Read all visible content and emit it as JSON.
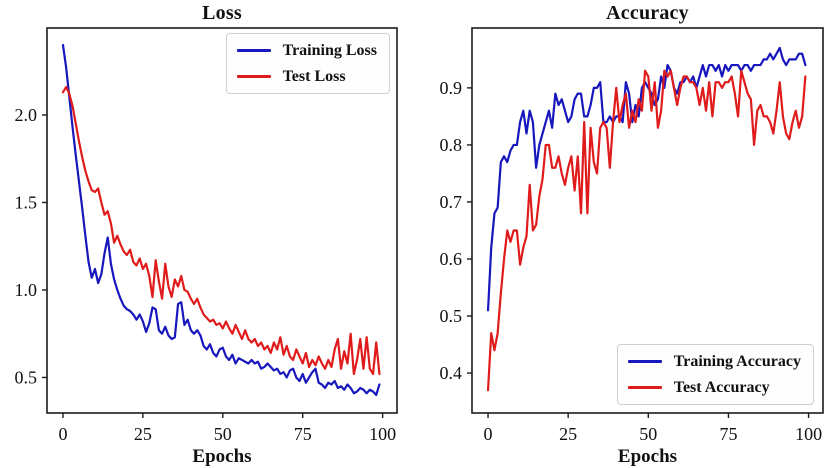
{
  "figure": {
    "background": "#ffffff"
  },
  "chart_data": [
    {
      "type": "line",
      "title": "Loss",
      "xlabel": "Epochs",
      "x_is_index": true,
      "xlim": [
        -5,
        104.5
      ],
      "ylim": [
        0.297,
        2.497
      ],
      "x_ticks": [
        0,
        25,
        50,
        75,
        100
      ],
      "x_tick_labels": [
        "0",
        "25",
        "50",
        "75",
        "100"
      ],
      "y_ticks": [
        0.5,
        1.0,
        1.5,
        2.0
      ],
      "y_tick_labels": [
        "0.5",
        "1.0",
        "1.5",
        "2.0"
      ],
      "grid": false,
      "legend_position": "upper-right",
      "series": [
        {
          "name": "Training Loss",
          "color": "#1717bd",
          "values": [
            2.4,
            2.27,
            2.1,
            1.93,
            1.77,
            1.62,
            1.47,
            1.31,
            1.16,
            1.07,
            1.12,
            1.04,
            1.09,
            1.21,
            1.3,
            1.15,
            1.06,
            1.0,
            0.95,
            0.91,
            0.89,
            0.88,
            0.86,
            0.83,
            0.86,
            0.82,
            0.76,
            0.81,
            0.9,
            0.89,
            0.77,
            0.75,
            0.79,
            0.74,
            0.72,
            0.73,
            0.92,
            0.93,
            0.8,
            0.83,
            0.77,
            0.75,
            0.77,
            0.74,
            0.68,
            0.66,
            0.69,
            0.64,
            0.62,
            0.66,
            0.67,
            0.62,
            0.6,
            0.63,
            0.58,
            0.61,
            0.6,
            0.59,
            0.58,
            0.6,
            0.58,
            0.59,
            0.55,
            0.56,
            0.58,
            0.56,
            0.54,
            0.55,
            0.52,
            0.53,
            0.5,
            0.54,
            0.55,
            0.5,
            0.48,
            0.52,
            0.47,
            0.5,
            0.53,
            0.55,
            0.47,
            0.46,
            0.44,
            0.47,
            0.46,
            0.48,
            0.44,
            0.45,
            0.43,
            0.46,
            0.44,
            0.41,
            0.42,
            0.44,
            0.43,
            0.41,
            0.43,
            0.42,
            0.4,
            0.46
          ]
        },
        {
          "name": "Test Loss",
          "color": "#e01b1b",
          "values": [
            2.13,
            2.16,
            2.12,
            2.05,
            1.95,
            1.85,
            1.76,
            1.68,
            1.62,
            1.57,
            1.56,
            1.58,
            1.5,
            1.43,
            1.45,
            1.38,
            1.27,
            1.31,
            1.26,
            1.22,
            1.2,
            1.23,
            1.16,
            1.14,
            1.18,
            1.12,
            1.15,
            1.08,
            0.96,
            1.17,
            1.05,
            0.95,
            1.15,
            1.02,
            0.96,
            1.06,
            1.02,
            1.08,
            1.0,
            0.99,
            0.95,
            0.92,
            0.95,
            0.9,
            0.86,
            0.84,
            0.82,
            0.83,
            0.8,
            0.81,
            0.78,
            0.82,
            0.78,
            0.75,
            0.8,
            0.76,
            0.72,
            0.77,
            0.72,
            0.7,
            0.72,
            0.68,
            0.7,
            0.66,
            0.68,
            0.64,
            0.7,
            0.66,
            0.73,
            0.63,
            0.68,
            0.62,
            0.6,
            0.66,
            0.62,
            0.58,
            0.64,
            0.56,
            0.6,
            0.57,
            0.62,
            0.58,
            0.55,
            0.6,
            0.56,
            0.66,
            0.72,
            0.55,
            0.65,
            0.58,
            0.75,
            0.52,
            0.6,
            0.72,
            0.55,
            0.73,
            0.55,
            0.52,
            0.7,
            0.52
          ]
        }
      ]
    },
    {
      "type": "line",
      "title": "Accuracy",
      "xlabel": "Epochs",
      "x_is_index": true,
      "xlim": [
        -5,
        104.5
      ],
      "ylim": [
        0.33,
        1.005
      ],
      "x_ticks": [
        0,
        25,
        50,
        75,
        100
      ],
      "x_tick_labels": [
        "0",
        "25",
        "50",
        "75",
        "100"
      ],
      "y_ticks": [
        0.4,
        0.5,
        0.6,
        0.7,
        0.8,
        0.9
      ],
      "y_tick_labels": [
        "0.4",
        "0.5",
        "0.6",
        "0.7",
        "0.8",
        "0.9"
      ],
      "grid": false,
      "legend_position": "lower-right",
      "series": [
        {
          "name": "Training Accuracy",
          "color": "#1717bd",
          "values": [
            0.51,
            0.62,
            0.68,
            0.69,
            0.77,
            0.78,
            0.77,
            0.79,
            0.8,
            0.8,
            0.84,
            0.86,
            0.82,
            0.86,
            0.84,
            0.76,
            0.8,
            0.82,
            0.84,
            0.86,
            0.83,
            0.89,
            0.87,
            0.88,
            0.86,
            0.84,
            0.85,
            0.88,
            0.89,
            0.89,
            0.85,
            0.85,
            0.87,
            0.9,
            0.9,
            0.91,
            0.84,
            0.84,
            0.85,
            0.84,
            0.85,
            0.85,
            0.84,
            0.91,
            0.89,
            0.84,
            0.87,
            0.85,
            0.9,
            0.91,
            0.9,
            0.89,
            0.87,
            0.88,
            0.92,
            0.9,
            0.94,
            0.93,
            0.9,
            0.89,
            0.91,
            0.91,
            0.92,
            0.91,
            0.92,
            0.9,
            0.92,
            0.94,
            0.92,
            0.94,
            0.94,
            0.93,
            0.94,
            0.92,
            0.94,
            0.93,
            0.94,
            0.94,
            0.94,
            0.93,
            0.94,
            0.94,
            0.93,
            0.94,
            0.94,
            0.94,
            0.95,
            0.95,
            0.96,
            0.95,
            0.96,
            0.97,
            0.95,
            0.94,
            0.95,
            0.95,
            0.95,
            0.96,
            0.96,
            0.94
          ]
        },
        {
          "name": "Test Accuracy",
          "color": "#e01b1b",
          "values": [
            0.37,
            0.47,
            0.44,
            0.47,
            0.54,
            0.6,
            0.65,
            0.63,
            0.65,
            0.65,
            0.59,
            0.62,
            0.64,
            0.73,
            0.65,
            0.66,
            0.71,
            0.74,
            0.8,
            0.8,
            0.76,
            0.76,
            0.78,
            0.75,
            0.73,
            0.76,
            0.78,
            0.72,
            0.78,
            0.68,
            0.84,
            0.68,
            0.83,
            0.77,
            0.75,
            0.83,
            0.84,
            0.83,
            0.76,
            0.84,
            0.9,
            0.84,
            0.87,
            0.89,
            0.83,
            0.86,
            0.84,
            0.88,
            0.86,
            0.93,
            0.92,
            0.86,
            0.91,
            0.83,
            0.86,
            0.93,
            0.92,
            0.93,
            0.9,
            0.87,
            0.9,
            0.92,
            0.92,
            0.91,
            0.91,
            0.9,
            0.87,
            0.9,
            0.86,
            0.91,
            0.85,
            0.91,
            0.91,
            0.9,
            0.91,
            0.91,
            0.92,
            0.89,
            0.85,
            0.93,
            0.91,
            0.89,
            0.88,
            0.8,
            0.86,
            0.87,
            0.85,
            0.85,
            0.84,
            0.82,
            0.86,
            0.91,
            0.85,
            0.82,
            0.81,
            0.84,
            0.86,
            0.83,
            0.85,
            0.92
          ]
        }
      ]
    }
  ]
}
